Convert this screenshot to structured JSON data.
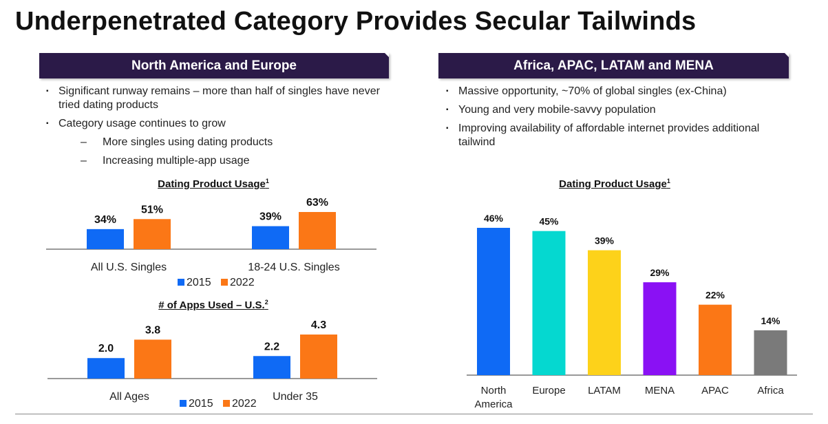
{
  "title": "Underpenetrated Category Provides Secular Tailwinds",
  "left_panel": {
    "header": "North America and Europe",
    "bullets": [
      {
        "text": "Significant runway remains – more than half of singles have never tried dating products"
      },
      {
        "text": "Category usage continues to grow",
        "subs": [
          "More singles using dating products",
          "Increasing multiple-app usage"
        ]
      }
    ]
  },
  "right_panel": {
    "header": "Africa, APAC, LATAM and MENA",
    "bullets": [
      {
        "text": "Massive opportunity, ~70% of global singles (ex-China)"
      },
      {
        "text": "Young and very mobile-savvy population"
      },
      {
        "text": "Improving availability of affordable internet provides additional tailwind"
      }
    ]
  },
  "bullet_mark": "▪",
  "sub_mark": "–",
  "colors": {
    "header_bg": "#2b1a48",
    "s2015": "#0f6af5",
    "s2022": "#fb7716"
  },
  "chart_titles": {
    "usage_left": "Dating Product Usage",
    "usage_left_sup": "1",
    "apps": "# of Apps Used – U.S.",
    "apps_sup": "2",
    "usage_right": "Dating Product Usage",
    "usage_right_sup": "1"
  },
  "chart_data": [
    {
      "type": "bar",
      "title": "Dating Product Usage",
      "categories": [
        "All U.S. Singles",
        "18-24 U.S. Singles"
      ],
      "series": [
        {
          "name": "2015",
          "values": [
            34,
            39
          ],
          "labels": [
            "34%",
            "39%"
          ],
          "color": "#0f6af5"
        },
        {
          "name": "2022",
          "values": [
            51,
            63
          ],
          "labels": [
            "51%",
            "63%"
          ],
          "color": "#fb7716"
        }
      ],
      "ylim": [
        0,
        63
      ],
      "legend": "bottom"
    },
    {
      "type": "bar",
      "title": "# of Apps Used – U.S.",
      "categories": [
        "All Ages",
        "Under 35"
      ],
      "series": [
        {
          "name": "2015",
          "values": [
            2.0,
            2.2
          ],
          "labels": [
            "2.0",
            "2.2"
          ],
          "color": "#0f6af5"
        },
        {
          "name": "2022",
          "values": [
            3.8,
            4.3
          ],
          "labels": [
            "3.8",
            "4.3"
          ],
          "color": "#fb7716"
        }
      ],
      "ylim": [
        0,
        4.3
      ],
      "legend": "bottom"
    },
    {
      "type": "bar",
      "title": "Dating Product Usage",
      "categories": [
        "North America",
        "Europe",
        "LATAM",
        "MENA",
        "APAC",
        "Africa"
      ],
      "category_lines": [
        [
          "North",
          "America"
        ],
        [
          "Europe"
        ],
        [
          "LATAM"
        ],
        [
          "MENA"
        ],
        [
          "APAC"
        ],
        [
          "Africa"
        ]
      ],
      "values": [
        46,
        45,
        39,
        29,
        22,
        14
      ],
      "labels": [
        "46%",
        "45%",
        "39%",
        "29%",
        "22%",
        "14%"
      ],
      "colors": [
        "#0f6af5",
        "#05d8d0",
        "#fdd21a",
        "#8a11f4",
        "#fb7716",
        "#7a7a7a"
      ],
      "ylim": [
        0,
        46
      ]
    }
  ]
}
